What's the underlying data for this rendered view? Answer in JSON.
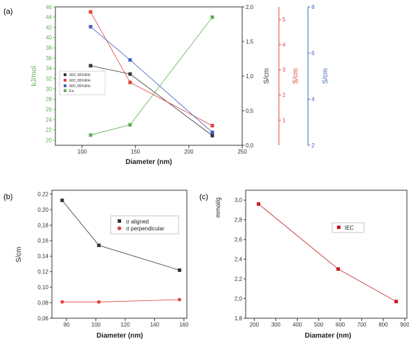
{
  "chart_data": [
    {
      "panel_label": "(a)",
      "type": "line",
      "xlabel": "Diameter (nm)",
      "xlim": [
        75,
        250
      ],
      "x_ticks": [
        "100",
        "150",
        "200",
        "250"
      ],
      "x": [
        108,
        145,
        222
      ],
      "colors": {
        "left_axis": "#5BAE4F",
        "s1": "#333333",
        "s2": "#E0403A",
        "s3": "#3C5FC2",
        "ea": "#5BAE4F"
      },
      "left_axis": {
        "label": "kJ/mol",
        "ylim": [
          19,
          46
        ],
        "ticks": [
          "20",
          "22",
          "24",
          "26",
          "28",
          "30",
          "32",
          "34",
          "36",
          "38",
          "40",
          "42",
          "44",
          "46"
        ]
      },
      "right_axes": [
        {
          "label": "S/cm",
          "ylim": [
            0,
            2
          ],
          "ticks": [
            "0,0",
            "0,5",
            "1,0",
            "1,5",
            "2,0"
          ]
        },
        {
          "label": "S/cm",
          "ylim": [
            0,
            5.5
          ],
          "ticks": [
            "1",
            "2",
            "3",
            "4",
            "5"
          ]
        },
        {
          "label": "S/cm",
          "ylim": [
            2,
            8
          ],
          "ticks": [
            "2",
            "4",
            "6",
            "8"
          ]
        }
      ],
      "series": [
        {
          "name": "30C,95%RH",
          "axis": 1,
          "values": [
            1.15,
            1.03,
            0.14
          ]
        },
        {
          "name": "60C,95%RH",
          "axis": 2,
          "values": [
            5.3,
            2.5,
            0.78
          ]
        },
        {
          "name": "90C,95%RH",
          "axis": 3,
          "values": [
            7.14,
            5.7,
            2.56
          ]
        },
        {
          "name": "Ea",
          "axis": 0,
          "values": [
            21,
            23,
            44
          ]
        }
      ]
    },
    {
      "panel_label": "(b)",
      "type": "line",
      "xlabel": "Diameter (nm)",
      "ylabel": "S/cm",
      "xlim": [
        70,
        162
      ],
      "ylim": [
        0.06,
        0.225
      ],
      "x_ticks": [
        "80",
        "100",
        "120",
        "140",
        "160"
      ],
      "y_ticks": [
        "0,06",
        "0,08",
        "0,10",
        "0,12",
        "0,14",
        "0,16",
        "0,18",
        "0,20",
        "0,22"
      ],
      "x": [
        77,
        102,
        157
      ],
      "series": [
        {
          "name": "σ aligned",
          "color": "#333333",
          "values": [
            0.212,
            0.154,
            0.122
          ]
        },
        {
          "name": "σ perpendicular",
          "color": "#E0403A",
          "values": [
            0.081,
            0.081,
            0.084
          ]
        }
      ]
    },
    {
      "panel_label": "(c)",
      "type": "line",
      "xlabel": "Diamater (nm)",
      "ylabel": "mmol/g",
      "xlim": [
        160,
        910
      ],
      "ylim": [
        1.8,
        3.1
      ],
      "x_ticks": [
        "200",
        "300",
        "400",
        "500",
        "600",
        "700",
        "800",
        "900"
      ],
      "y_ticks": [
        "1,8",
        "2,0",
        "2,2",
        "2,4",
        "2,6",
        "2,8",
        "3,0"
      ],
      "x": [
        220,
        590,
        860
      ],
      "series": [
        {
          "name": "IEC",
          "color": "#C8151B",
          "values": [
            2.96,
            2.3,
            1.97
          ]
        }
      ]
    }
  ]
}
